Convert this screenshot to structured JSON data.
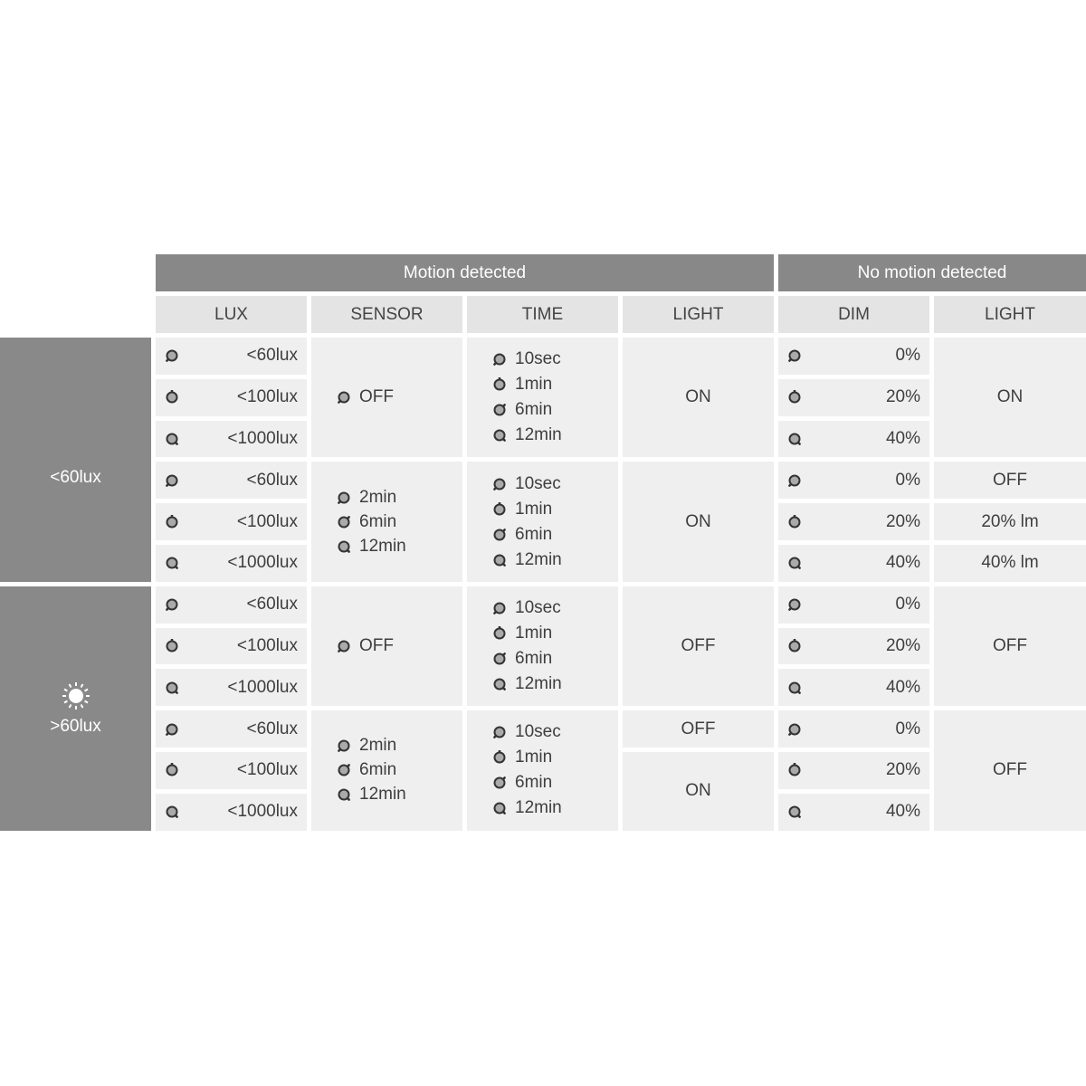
{
  "headers": {
    "motion": "Motion detected",
    "no_motion": "No motion detected"
  },
  "columns": [
    "LUX",
    "SENSOR",
    "TIME",
    "LIGHT",
    "DIM",
    "LIGHT"
  ],
  "conditions": [
    {
      "icon": "moon-icon",
      "label": "<60lux"
    },
    {
      "icon": "sun-icon",
      "label": ">60lux"
    }
  ],
  "lux_levels": [
    {
      "label": "<60lux",
      "dial": "bottom-left"
    },
    {
      "label": "<100lux",
      "dial": "top"
    },
    {
      "label": "<1000lux",
      "dial": "bottom-right"
    }
  ],
  "dim_levels": [
    {
      "label": "0%",
      "dial": "bottom-left"
    },
    {
      "label": "20%",
      "dial": "top"
    },
    {
      "label": "40%",
      "dial": "bottom-right"
    }
  ],
  "time_options": [
    {
      "label": "10sec",
      "dial": "bottom-left"
    },
    {
      "label": "1min",
      "dial": "top"
    },
    {
      "label": "6min",
      "dial": "top-right"
    },
    {
      "label": "12min",
      "dial": "bottom-right"
    }
  ],
  "sensor_off": {
    "label": "OFF",
    "dial": "bottom-left"
  },
  "sensor_options": [
    {
      "label": "2min",
      "dial": "bottom-left"
    },
    {
      "label": "6min",
      "dial": "top-right"
    },
    {
      "label": "12min",
      "dial": "bottom-right"
    }
  ],
  "groups": [
    {
      "sensor": "off",
      "motion_light": [
        "ON"
      ],
      "no_motion_light": [
        "ON"
      ]
    },
    {
      "sensor": "options",
      "motion_light": [
        "ON"
      ],
      "no_motion_light": [
        "OFF",
        "20% lm",
        "40% lm"
      ]
    },
    {
      "sensor": "off",
      "motion_light": [
        "OFF"
      ],
      "no_motion_light": [
        "OFF"
      ]
    },
    {
      "sensor": "options",
      "motion_light": [
        "OFF",
        "ON"
      ],
      "no_motion_light": [
        "OFF"
      ]
    }
  ],
  "colors": {
    "header": "#888888",
    "subheader": "#e4e4e4",
    "cell": "#efefef",
    "condition": "#898989"
  }
}
